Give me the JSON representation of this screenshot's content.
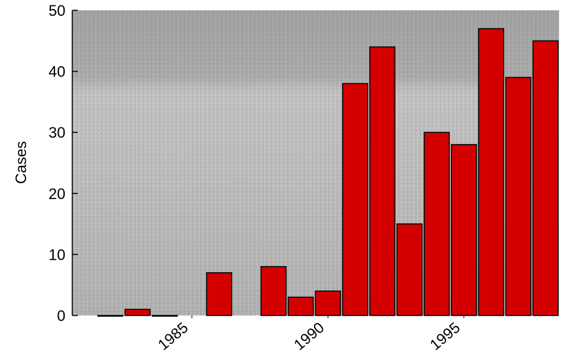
{
  "chart_data": {
    "type": "bar",
    "y_label": "Cases",
    "x": [
      1982,
      1983,
      1984,
      1986,
      1988,
      1989,
      1990,
      1991,
      1992,
      1993,
      1994,
      1995,
      1996,
      1997,
      1998
    ],
    "values": [
      0,
      1,
      0,
      7,
      8,
      3,
      4,
      38,
      44,
      15,
      30,
      28,
      47,
      39,
      45
    ],
    "color": "#d40000",
    "xlim": [
      1980.6,
      1998.5
    ],
    "xticks": [
      1985,
      1990,
      1995
    ],
    "ylim": [
      0,
      50
    ],
    "yticks": [
      0,
      10,
      20,
      30,
      40,
      50
    ]
  }
}
